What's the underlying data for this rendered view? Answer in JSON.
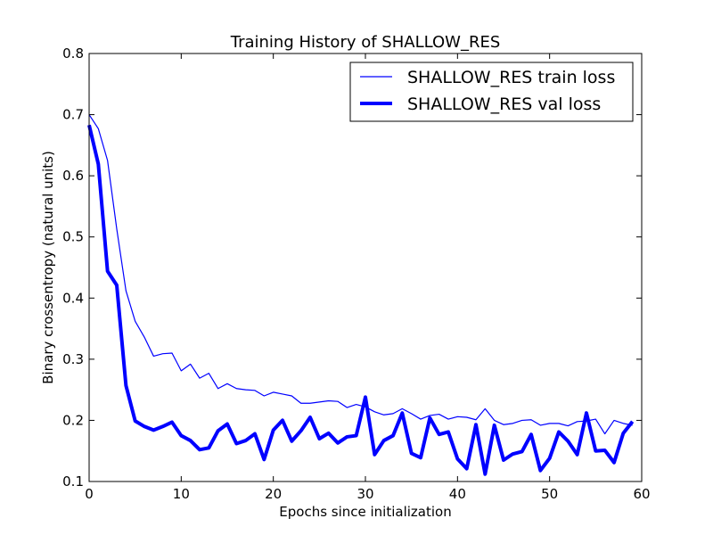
{
  "chart_data": {
    "type": "line",
    "title": "Training History of SHALLOW_RES",
    "xlabel": "Epochs since initialization",
    "ylabel": "Binary crossentropy (natural units)",
    "xlim": [
      0,
      60
    ],
    "ylim": [
      0.1,
      0.8
    ],
    "xticks": [
      0,
      10,
      20,
      30,
      40,
      50,
      60
    ],
    "yticks": [
      0.1,
      0.2,
      0.3,
      0.4,
      0.5,
      0.6,
      0.7,
      0.8
    ],
    "xtick_labels": [
      "0",
      "10",
      "20",
      "30",
      "40",
      "50",
      "60"
    ],
    "ytick_labels": [
      "0.1",
      "0.2",
      "0.3",
      "0.4",
      "0.5",
      "0.6",
      "0.7",
      "0.8"
    ],
    "grid": false,
    "legend_position": "top-right",
    "x": [
      0,
      1,
      2,
      3,
      4,
      5,
      6,
      7,
      8,
      9,
      10,
      11,
      12,
      13,
      14,
      15,
      16,
      17,
      18,
      19,
      20,
      21,
      22,
      23,
      24,
      25,
      26,
      27,
      28,
      29,
      30,
      31,
      32,
      33,
      34,
      35,
      36,
      37,
      38,
      39,
      40,
      41,
      42,
      43,
      44,
      45,
      46,
      47,
      48,
      49,
      50,
      51,
      52,
      53,
      54,
      55,
      56,
      57,
      58,
      59
    ],
    "series": [
      {
        "name": "SHALLOW_RES train loss",
        "color": "#0000ff",
        "line_weight": "thin",
        "values": [
          0.7,
          0.677,
          0.625,
          0.513,
          0.412,
          0.362,
          0.336,
          0.305,
          0.309,
          0.31,
          0.281,
          0.292,
          0.269,
          0.277,
          0.252,
          0.26,
          0.252,
          0.25,
          0.249,
          0.24,
          0.246,
          0.243,
          0.24,
          0.228,
          0.228,
          0.23,
          0.232,
          0.231,
          0.221,
          0.226,
          0.222,
          0.214,
          0.209,
          0.211,
          0.219,
          0.211,
          0.202,
          0.208,
          0.21,
          0.202,
          0.206,
          0.205,
          0.201,
          0.219,
          0.2,
          0.193,
          0.195,
          0.2,
          0.201,
          0.192,
          0.195,
          0.195,
          0.191,
          0.198,
          0.199,
          0.202,
          0.178,
          0.2,
          0.195,
          0.192
        ]
      },
      {
        "name": "SHALLOW_RES val loss",
        "color": "#0000ff",
        "line_weight": "thick",
        "values": [
          0.683,
          0.619,
          0.444,
          0.421,
          0.257,
          0.199,
          0.19,
          0.184,
          0.19,
          0.197,
          0.175,
          0.167,
          0.152,
          0.155,
          0.183,
          0.194,
          0.162,
          0.167,
          0.178,
          0.136,
          0.184,
          0.2,
          0.166,
          0.183,
          0.205,
          0.17,
          0.179,
          0.163,
          0.173,
          0.175,
          0.238,
          0.144,
          0.167,
          0.175,
          0.212,
          0.146,
          0.139,
          0.204,
          0.177,
          0.181,
          0.137,
          0.121,
          0.193,
          0.112,
          0.192,
          0.135,
          0.145,
          0.149,
          0.177,
          0.118,
          0.138,
          0.181,
          0.166,
          0.144,
          0.212,
          0.15,
          0.151,
          0.131,
          0.179,
          0.198
        ]
      }
    ]
  }
}
